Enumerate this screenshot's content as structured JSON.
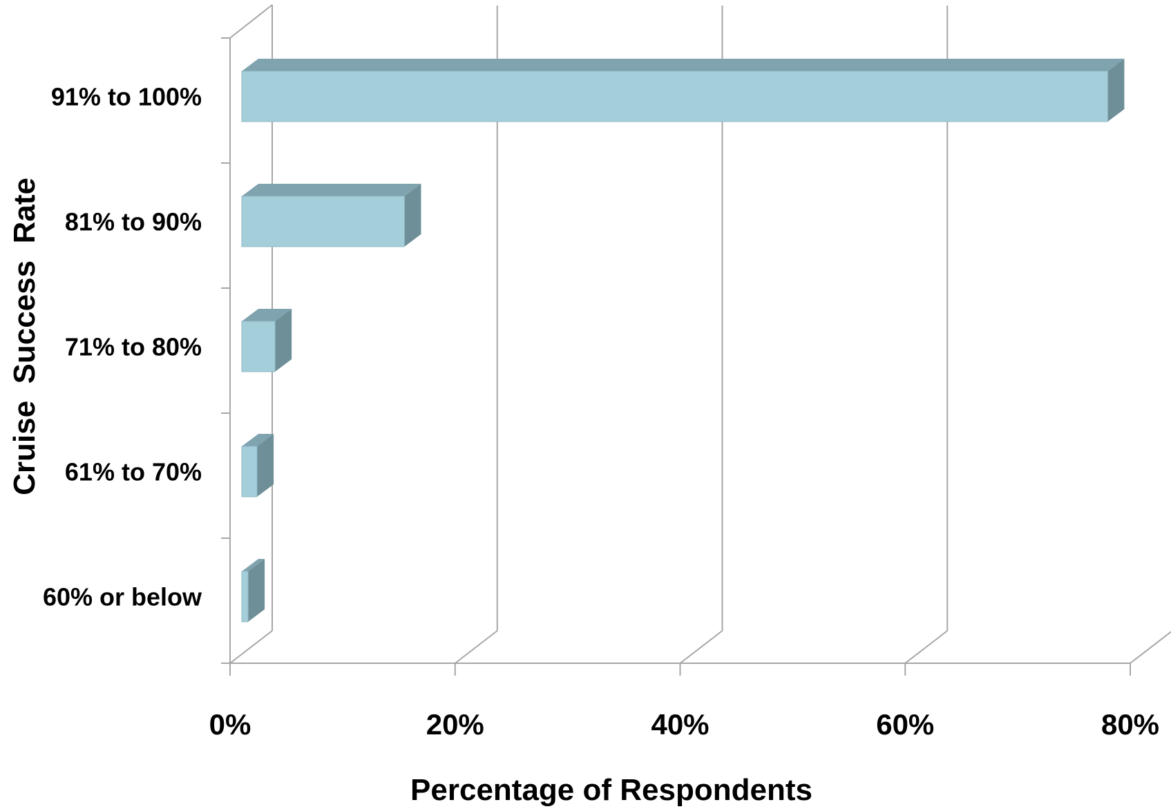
{
  "chart_data": {
    "type": "bar",
    "orientation": "horizontal",
    "three_d": true,
    "categories": [
      "91% to 100%",
      "81% to 90%",
      "71% to 80%",
      "61% to 70%",
      "60% or below"
    ],
    "values": [
      78,
      15.5,
      4,
      2.4,
      1.6
    ],
    "xlabel": "Percentage of Respondents",
    "ylabel": "Cruise  Success  Rate",
    "xlim": [
      0,
      80
    ],
    "xticks": [
      "0%",
      "20%",
      "40%",
      "60%",
      "80%"
    ],
    "grid": "vertical",
    "legend": "none",
    "colors": {
      "front": "#a3ceda",
      "top": "#7fa3af",
      "side": "#6e8f98",
      "edge": "#8fb8c4",
      "axis": "#a6a6a6"
    }
  }
}
